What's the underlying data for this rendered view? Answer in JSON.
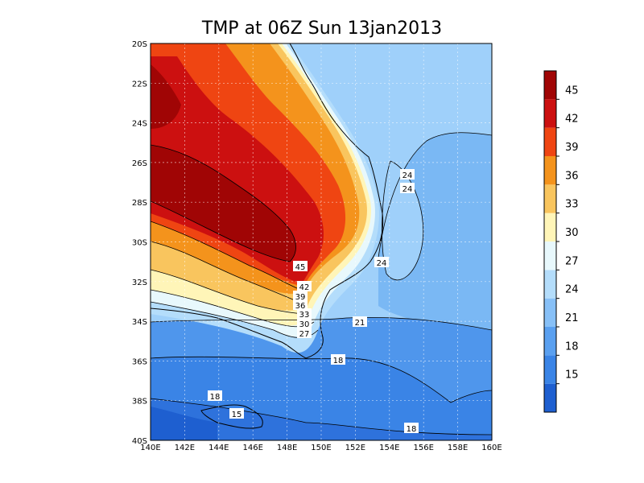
{
  "title": "TMP at 06Z Sun 13jan2013",
  "map": {
    "lon_labels": [
      "140E",
      "142E",
      "144E",
      "146E",
      "148E",
      "150E",
      "152E",
      "154E",
      "156E",
      "158E",
      "160E"
    ],
    "lat_labels": [
      "20S",
      "22S",
      "24S",
      "26S",
      "28S",
      "30S",
      "32S",
      "34S",
      "36S",
      "38S",
      "40S"
    ],
    "ocean_color": "#9fd0fa",
    "land_color": "#2e7bdc"
  },
  "contour_labels": [
    "24",
    "24",
    "24",
    "45",
    "42",
    "39",
    "36",
    "33",
    "30",
    "27",
    "21",
    "18",
    "18",
    "15",
    "18"
  ],
  "colorbar": {
    "labels": [
      "15",
      "18",
      "21",
      "24",
      "27",
      "30",
      "33",
      "36",
      "39",
      "42",
      "45"
    ],
    "colors": [
      "#1e5fd0",
      "#3a84e6",
      "#5aa0f0",
      "#87c0f7",
      "#b4ddfb",
      "#e8f8fc",
      "#fff5b8",
      "#f9c55e",
      "#f4931c",
      "#ef4512",
      "#cc1010",
      "#a00505"
    ]
  },
  "chart_data": {
    "type": "heatmap",
    "title": "TMP at 06Z Sun 13jan2013",
    "x_ticks": [
      "140E",
      "142E",
      "144E",
      "146E",
      "148E",
      "150E",
      "152E",
      "154E",
      "156E",
      "158E",
      "160E"
    ],
    "y_ticks": [
      "20S",
      "22S",
      "24S",
      "26S",
      "28S",
      "30S",
      "32S",
      "34S",
      "36S",
      "38S",
      "40S"
    ],
    "xlim": [
      140,
      160
    ],
    "ylim": [
      -40,
      -20
    ],
    "color_levels": [
      15,
      18,
      21,
      24,
      27,
      30,
      33,
      36,
      39,
      42,
      45
    ],
    "contour_label_values": [
      24,
      24,
      24,
      45,
      42,
      39,
      36,
      33,
      30,
      27,
      21,
      18,
      18,
      15,
      18
    ],
    "grid": true
  }
}
